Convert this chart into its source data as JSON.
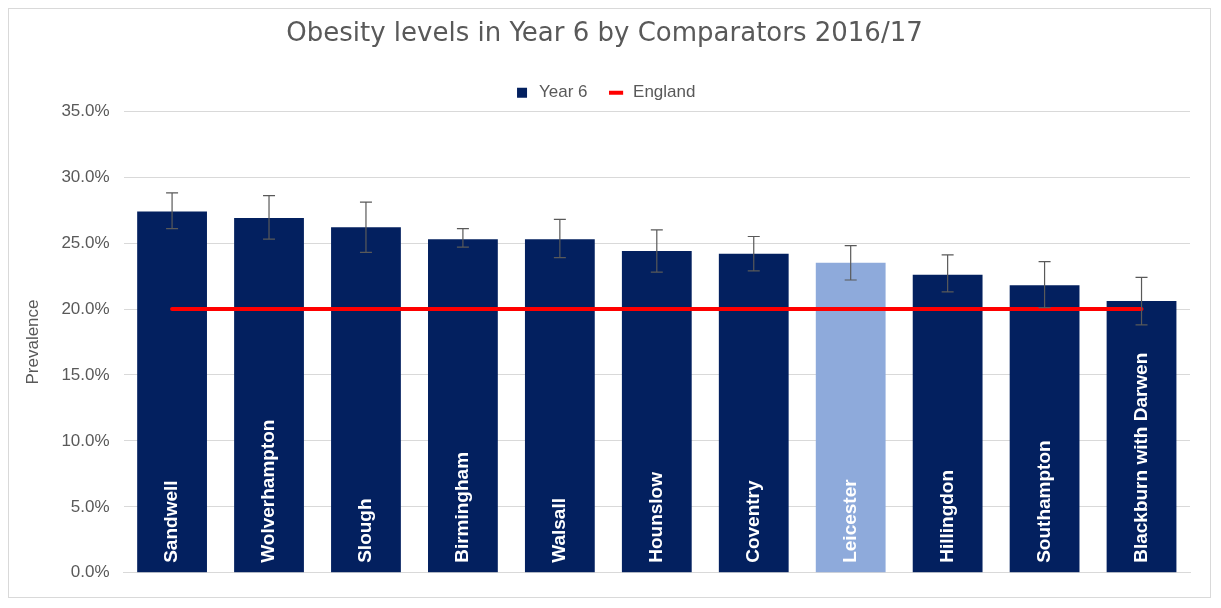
{
  "chart_data": {
    "type": "bar",
    "title": "Obesity levels in Year 6 by Comparators 2016/17",
    "ylabel": "Prevalence",
    "categories": [
      "Sandwell",
      "Wolverhampton",
      "Slough",
      "Birmingham",
      "Walsall",
      "Hounslow",
      "Coventry",
      "Leicester",
      "Hillingdon",
      "Southampton",
      "Blackburn with Darwen"
    ],
    "series": [
      {
        "name": "Year 6",
        "colors": [
          "#03205f",
          "#03205f",
          "#03205f",
          "#03205f",
          "#03205f",
          "#03205f",
          "#03205f",
          "#8eaadb",
          "#03205f",
          "#03205f",
          "#03205f"
        ],
        "values": [
          27.4,
          26.9,
          26.2,
          25.3,
          25.3,
          24.4,
          24.2,
          23.5,
          22.6,
          21.8,
          20.6
        ],
        "errors": [
          [
            26.1,
            28.8
          ],
          [
            25.3,
            28.6
          ],
          [
            24.3,
            28.1
          ],
          [
            24.7,
            26.1
          ],
          [
            23.9,
            26.8
          ],
          [
            22.8,
            26.0
          ],
          [
            22.9,
            25.5
          ],
          [
            22.2,
            24.8
          ],
          [
            21.3,
            24.1
          ],
          [
            20.1,
            23.6
          ],
          [
            18.8,
            22.4
          ]
        ]
      },
      {
        "name": "England",
        "type": "line",
        "color": "#ff0000",
        "values": [
          20.0,
          20.0,
          20.0,
          20.0,
          20.0,
          20.0,
          20.0,
          20.0,
          20.0,
          20.0,
          20.0
        ]
      }
    ],
    "ylim": [
      0,
      35
    ],
    "yticks": [
      {
        "value": 0,
        "label": "0.0%"
      },
      {
        "value": 5,
        "label": "5.0%"
      },
      {
        "value": 10,
        "label": "10.0%"
      },
      {
        "value": 15,
        "label": "15.0%"
      },
      {
        "value": 20,
        "label": "20.0%"
      },
      {
        "value": 25,
        "label": "25.0%"
      },
      {
        "value": 30,
        "label": "30.0%"
      },
      {
        "value": 35,
        "label": "35.0%"
      }
    ],
    "grid": "y",
    "legend": "top"
  }
}
